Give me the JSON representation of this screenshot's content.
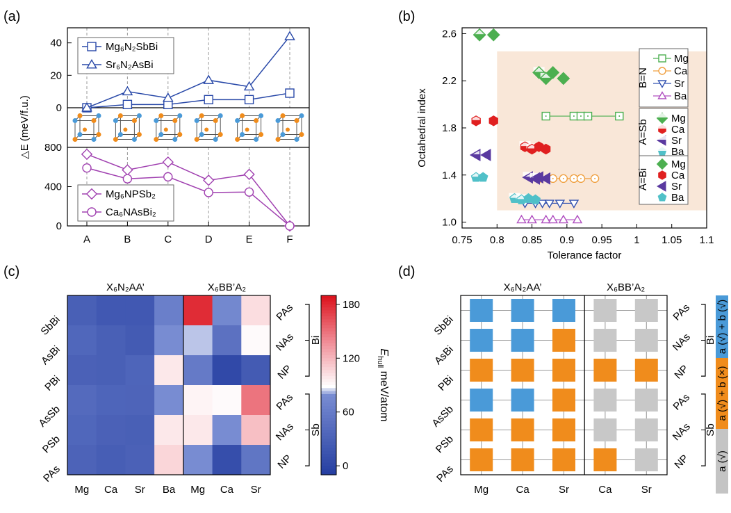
{
  "chart_data": [
    {
      "panel": "(a)",
      "type": "line",
      "categories": [
        "A",
        "B",
        "C",
        "D",
        "E",
        "F"
      ],
      "ylabel": "△E (meV/f.u.)",
      "top": {
        "ylim": [
          0,
          45
        ],
        "yticks": [
          "0",
          "20",
          "40"
        ],
        "series": [
          {
            "name": "Mg₆N₂SbBi",
            "marker": "square",
            "color": "#2848a8",
            "values": [
              0,
              2,
              2,
              5,
              5,
              9
            ]
          },
          {
            "name": "Sr₆N₂AsBi",
            "marker": "triangle",
            "color": "#2848a8",
            "values": [
              0,
              10,
              6,
              17,
              13,
              44
            ]
          }
        ]
      },
      "bottom": {
        "ylim": [
          0,
          800
        ],
        "yticks": [
          "0",
          "400",
          "800"
        ],
        "series": [
          {
            "name": "Mg₆NPSb₂",
            "marker": "diamond",
            "color": "#a040b0",
            "values": [
              730,
              570,
              650,
              465,
              525,
              0
            ]
          },
          {
            "name": "Ca₆NAsBi₂",
            "marker": "circle",
            "color": "#a040b0",
            "values": [
              590,
              480,
              500,
              340,
              345,
              0
            ]
          }
        ]
      }
    },
    {
      "panel": "(b)",
      "type": "scatter",
      "xlabel": "Tolerance factor",
      "ylabel": "Octahedral index",
      "xlim": [
        0.75,
        1.1
      ],
      "ylim": [
        0.95,
        2.65
      ],
      "xticks": [
        "0.75",
        "0.8",
        "0.85",
        "0.9",
        "0.95",
        "1",
        "1.05",
        "1.1"
      ],
      "yticks": [
        "1.0",
        "1.4",
        "1.8",
        "2.2",
        "2.6"
      ],
      "legend_groups": [
        "B=N",
        "A=Sb",
        "A=Bi"
      ],
      "legend_labels": [
        "Mg",
        "Ca",
        "Sr",
        "Ba"
      ],
      "series": [
        {
          "name": "B=N Mg",
          "x": [
            0.87,
            0.91,
            0.92,
            0.93,
            0.975
          ],
          "y": [
            1.9,
            1.9,
            1.9,
            1.9,
            1.9
          ]
        },
        {
          "name": "B=N Ca",
          "x": [
            0.86,
            0.88,
            0.895,
            0.91,
            0.92,
            0.94
          ],
          "y": [
            1.37,
            1.37,
            1.37,
            1.37,
            1.37,
            1.37
          ]
        },
        {
          "name": "B=N Sr",
          "x": [
            0.84,
            0.855,
            0.865,
            0.875,
            0.89,
            0.91
          ],
          "y": [
            1.16,
            1.16,
            1.16,
            1.16,
            1.16,
            1.16
          ]
        },
        {
          "name": "B=N Ba",
          "x": [
            0.835,
            0.85,
            0.87,
            0.88,
            0.895,
            0.915
          ],
          "y": [
            1.02,
            1.02,
            1.02,
            1.02,
            1.02,
            1.02
          ]
        },
        {
          "name": "A=Sb Mg",
          "x": [
            0.775,
            0.86,
            0.87
          ],
          "y": [
            2.59,
            2.27,
            2.22
          ]
        },
        {
          "name": "A=Sb Ca",
          "x": [
            0.77,
            0.84,
            0.85
          ],
          "y": [
            1.86,
            1.64,
            1.62
          ]
        },
        {
          "name": "A=Sb Sr",
          "x": [
            0.77,
            0.845,
            0.855
          ],
          "y": [
            1.57,
            1.38,
            1.37
          ]
        },
        {
          "name": "A=Sb Ba",
          "x": [
            0.77,
            0.825,
            0.835
          ],
          "y": [
            1.38,
            1.2,
            1.19
          ]
        },
        {
          "name": "A=Bi Mg",
          "x": [
            0.795,
            0.88,
            0.895
          ],
          "y": [
            2.59,
            2.27,
            2.22
          ]
        },
        {
          "name": "A=Bi Ca",
          "x": [
            0.795,
            0.86,
            0.87
          ],
          "y": [
            1.86,
            1.64,
            1.62
          ]
        },
        {
          "name": "A=Bi Sr",
          "x": [
            0.785,
            0.86,
            0.87
          ],
          "y": [
            1.57,
            1.38,
            1.37
          ]
        },
        {
          "name": "A=Bi Ba",
          "x": [
            0.78,
            0.845,
            0.855
          ],
          "y": [
            1.38,
            1.2,
            1.19
          ]
        }
      ],
      "shaded_region": {
        "x": [
          0.8,
          1.1
        ],
        "y": [
          1.1,
          2.45
        ]
      }
    },
    {
      "panel": "(c)",
      "type": "heatmap",
      "column_groups": [
        "X₆N₂AA’",
        "X₆BB’A₂"
      ],
      "columns": [
        "Mg",
        "Ca",
        "Sr",
        "Ba",
        "Mg",
        "Ca",
        "Sr"
      ],
      "rows": [
        "SbBi",
        "AsBi",
        "PBi",
        "AsSb",
        "PSb",
        "PAs"
      ],
      "right_labels": [
        "PAs",
        "NAs",
        "NP",
        "PAs",
        "NAs",
        "NP"
      ],
      "right_groups": [
        "Bi",
        "Sb"
      ],
      "colorbar": {
        "label": "E",
        "subscript": "hull",
        "unit": " meV/atom",
        "range": [
          -10,
          190
        ],
        "ticks": [
          "0",
          "60",
          "120",
          "180"
        ]
      },
      "values": [
        [
          30,
          22,
          22,
          65,
          180,
          75,
          105
        ],
        [
          38,
          30,
          25,
          80,
          85,
          50,
          92
        ],
        [
          32,
          30,
          36,
          100,
          60,
          5,
          25
        ],
        [
          42,
          36,
          35,
          80,
          95,
          92,
          150
        ],
        [
          38,
          32,
          30,
          100,
          100,
          80,
          118
        ],
        [
          34,
          28,
          32,
          108,
          80,
          10,
          55
        ]
      ]
    },
    {
      "panel": "(d)",
      "type": "table",
      "column_groups": [
        "X₆N₂AA’",
        "X₆BB’A₂"
      ],
      "columns": [
        "Mg",
        "Ca",
        "Sr",
        "Ca",
        "Sr"
      ],
      "rows": [
        "SbBi",
        "AsBi",
        "PBi",
        "AsSb",
        "PSb",
        "PAs"
      ],
      "right_labels": [
        "PAs",
        "NAs",
        "NP",
        "PAs",
        "NAs",
        "NP"
      ],
      "right_groups": [
        "Bi",
        "Sb"
      ],
      "legend": [
        {
          "label": "a (√) + b (√)",
          "color": "#4a9ad8"
        },
        {
          "label": "a (√) + b (×)",
          "color": "#f08c1c"
        },
        {
          "label": "a (√)",
          "color": "#c4c4c4"
        }
      ],
      "cells": [
        [
          "blue",
          "blue",
          "blue",
          "gray",
          "gray"
        ],
        [
          "blue",
          "blue",
          "orange",
          "gray",
          "gray"
        ],
        [
          "orange",
          "orange",
          "orange",
          "orange",
          "orange"
        ],
        [
          "blue",
          "blue",
          "orange",
          "gray",
          "gray"
        ],
        [
          "orange",
          "orange",
          "orange",
          "gray",
          "gray"
        ],
        [
          "orange",
          "orange",
          "orange",
          "orange",
          "gray"
        ]
      ]
    }
  ]
}
